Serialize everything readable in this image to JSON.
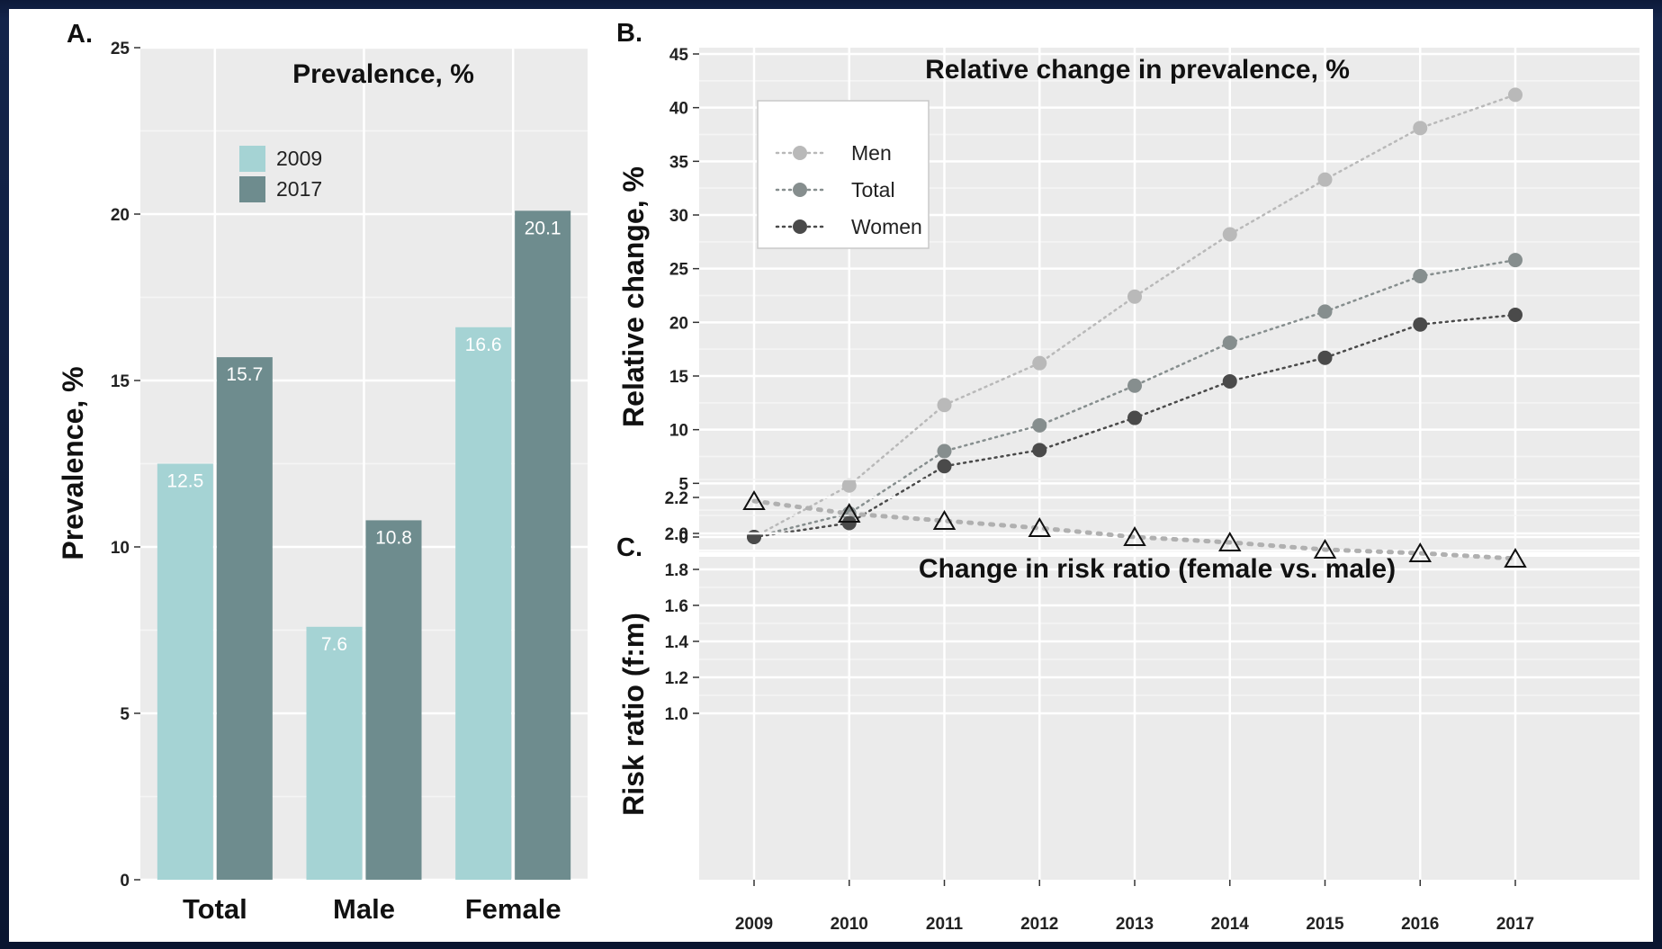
{
  "chart_data": [
    {
      "panel": "A.",
      "type": "bar",
      "title": "Prevalence, %",
      "ylabel": "Prevalence, %",
      "xlabel": "",
      "ylim": [
        0,
        25
      ],
      "yticks": [
        0,
        5,
        10,
        15,
        20,
        25
      ],
      "categories": [
        "Total",
        "Male",
        "Female"
      ],
      "series": [
        {
          "name": "2009",
          "color": "#a5d3d4",
          "values": [
            12.5,
            7.6,
            16.6
          ],
          "labels": [
            "12.5",
            "7.6",
            "16.6"
          ]
        },
        {
          "name": "2017",
          "color": "#6e8c8e",
          "values": [
            15.7,
            10.8,
            20.1
          ],
          "labels": [
            "15.7",
            "10.8",
            "20.1"
          ]
        }
      ],
      "grid": true,
      "legend": "top-center"
    },
    {
      "panel": "B.",
      "type": "line",
      "title": "Relative change in prevalence, %",
      "ylabel": "Relative change, %",
      "ylim": [
        0,
        45
      ],
      "yticks": [
        0,
        5,
        10,
        15,
        20,
        25,
        30,
        35,
        40,
        45
      ],
      "x": [
        2009,
        2010,
        2011,
        2012,
        2013,
        2014,
        2015,
        2016,
        2017
      ],
      "series": [
        {
          "name": "Men",
          "color": "#b9b9b9",
          "values": [
            0,
            4.8,
            12.3,
            16.2,
            22.4,
            28.2,
            33.3,
            38.1,
            41.2
          ]
        },
        {
          "name": "Total",
          "color": "#868e8e",
          "values": [
            0,
            2.2,
            8.0,
            10.4,
            14.1,
            18.1,
            21.0,
            24.3,
            25.8
          ]
        },
        {
          "name": "Women",
          "color": "#4a4a4a",
          "values": [
            0,
            1.3,
            6.6,
            8.1,
            11.1,
            14.5,
            16.7,
            19.8,
            20.7
          ]
        }
      ],
      "grid": true,
      "legend": "top-left"
    },
    {
      "panel": "C.",
      "type": "line",
      "title": "Change in risk ratio (female vs. male)",
      "ylabel": "Risk ratio (f:m)",
      "ylim": [
        1.0,
        2.3
      ],
      "yticks": [
        "1.0",
        "1.2",
        "1.4",
        "1.6",
        "1.8",
        "2.0",
        "2.2"
      ],
      "x": [
        2009,
        2010,
        2011,
        2012,
        2013,
        2014,
        2015,
        2016,
        2017
      ],
      "xticks": [
        "2009",
        "2010",
        "2011",
        "2012",
        "2013",
        "2014",
        "2015",
        "2016",
        "2017"
      ],
      "series": [
        {
          "color": "#b0b0b0",
          "values": [
            2.18,
            2.11,
            2.07,
            2.03,
            1.98,
            1.95,
            1.91,
            1.89,
            1.86
          ]
        }
      ],
      "grid": true
    }
  ]
}
